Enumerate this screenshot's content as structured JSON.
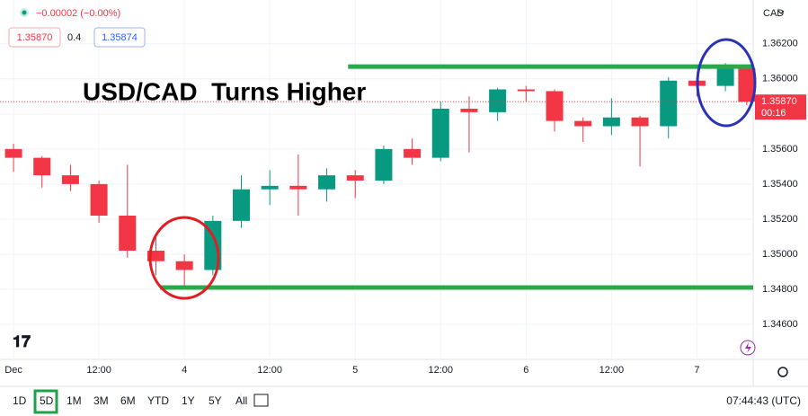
{
  "header": {
    "change": "−0.00002 (−0.00%)",
    "bid": "1.35870",
    "spread": "0.4",
    "ask": "1.35874"
  },
  "chart_data": {
    "type": "candlestick",
    "title": "USD/CAD  Turns Higher",
    "currency": "CAD",
    "up_color": "#089981",
    "down_color": "#f23645",
    "x": [
      0,
      4,
      8,
      12,
      16,
      20,
      24,
      28,
      32,
      36,
      40,
      44,
      48,
      52,
      56,
      60,
      64,
      68,
      72,
      76,
      80,
      84,
      88,
      92,
      96,
      100,
      103
    ],
    "open": [
      1.356,
      1.3555,
      1.3545,
      1.354,
      1.3522,
      1.3502,
      1.3496,
      1.3491,
      1.3519,
      1.3537,
      1.3539,
      1.3537,
      1.3545,
      1.3542,
      1.356,
      1.3555,
      1.3583,
      1.3581,
      1.3594,
      1.3593,
      1.3576,
      1.3573,
      1.3578,
      1.3573,
      1.3599,
      1.3596,
      1.3606
    ],
    "high": [
      1.3563,
      1.3556,
      1.3551,
      1.3542,
      1.3551,
      1.351,
      1.35,
      1.3522,
      1.3545,
      1.3548,
      1.3557,
      1.3549,
      1.3548,
      1.3562,
      1.3566,
      1.3587,
      1.359,
      1.3595,
      1.3596,
      1.3594,
      1.3578,
      1.3589,
      1.3579,
      1.3601,
      1.3602,
      1.3609,
      1.3608
    ],
    "low": [
      1.3547,
      1.3538,
      1.3536,
      1.3518,
      1.3498,
      1.3488,
      1.3481,
      1.3488,
      1.3515,
      1.3528,
      1.3522,
      1.353,
      1.3532,
      1.354,
      1.3551,
      1.3553,
      1.3558,
      1.3576,
      1.3587,
      1.357,
      1.3564,
      1.3568,
      1.355,
      1.3566,
      1.359,
      1.3593,
      1.3585
    ],
    "close": [
      1.3555,
      1.3545,
      1.354,
      1.3522,
      1.3502,
      1.3496,
      1.3491,
      1.3519,
      1.3537,
      1.3539,
      1.3537,
      1.3545,
      1.3542,
      1.356,
      1.3555,
      1.3583,
      1.3581,
      1.3594,
      1.3593,
      1.3576,
      1.3573,
      1.3578,
      1.3573,
      1.3599,
      1.3596,
      1.3606,
      1.3587
    ],
    "xlim": [
      -1.9,
      103.9
    ],
    "xticks": [
      {
        "value": 0,
        "label": "Dec"
      },
      {
        "value": 12,
        "label": "12:00"
      },
      {
        "value": 24,
        "label": "4"
      },
      {
        "value": 36,
        "label": "12:00"
      },
      {
        "value": 48,
        "label": "5"
      },
      {
        "value": 60,
        "label": "12:00"
      },
      {
        "value": 72,
        "label": "6"
      },
      {
        "value": 84,
        "label": "12:00"
      },
      {
        "value": 96,
        "label": "7"
      }
    ],
    "ylim": [
      1.344,
      1.3645
    ],
    "yticks": [
      {
        "value": 1.346,
        "label": "1.34600"
      },
      {
        "value": 1.348,
        "label": "1.34800"
      },
      {
        "value": 1.35,
        "label": "1.35000"
      },
      {
        "value": 1.352,
        "label": "1.35200"
      },
      {
        "value": 1.354,
        "label": "1.35400"
      },
      {
        "value": 1.356,
        "label": "1.35600"
      },
      {
        "value": 1.358,
        "label": "1.35800"
      },
      {
        "value": 1.36,
        "label": "1.36000"
      },
      {
        "value": 1.362,
        "label": "1.36200"
      }
    ],
    "last_price": {
      "value": 1.3587,
      "label": "1.35870"
    },
    "countdown": "00:16",
    "levels": [
      {
        "value": 1.3607,
        "start": 47,
        "color": "#2ba84a"
      },
      {
        "value": 1.3481,
        "start": 20.6,
        "color": "#2ba84a"
      }
    ]
  },
  "toolbar": {
    "ranges": [
      "1D",
      "5D",
      "1M",
      "3M",
      "6M",
      "YTD",
      "1Y",
      "5Y",
      "All"
    ],
    "selected": 1,
    "clock": "07:44:43 (UTC)"
  }
}
